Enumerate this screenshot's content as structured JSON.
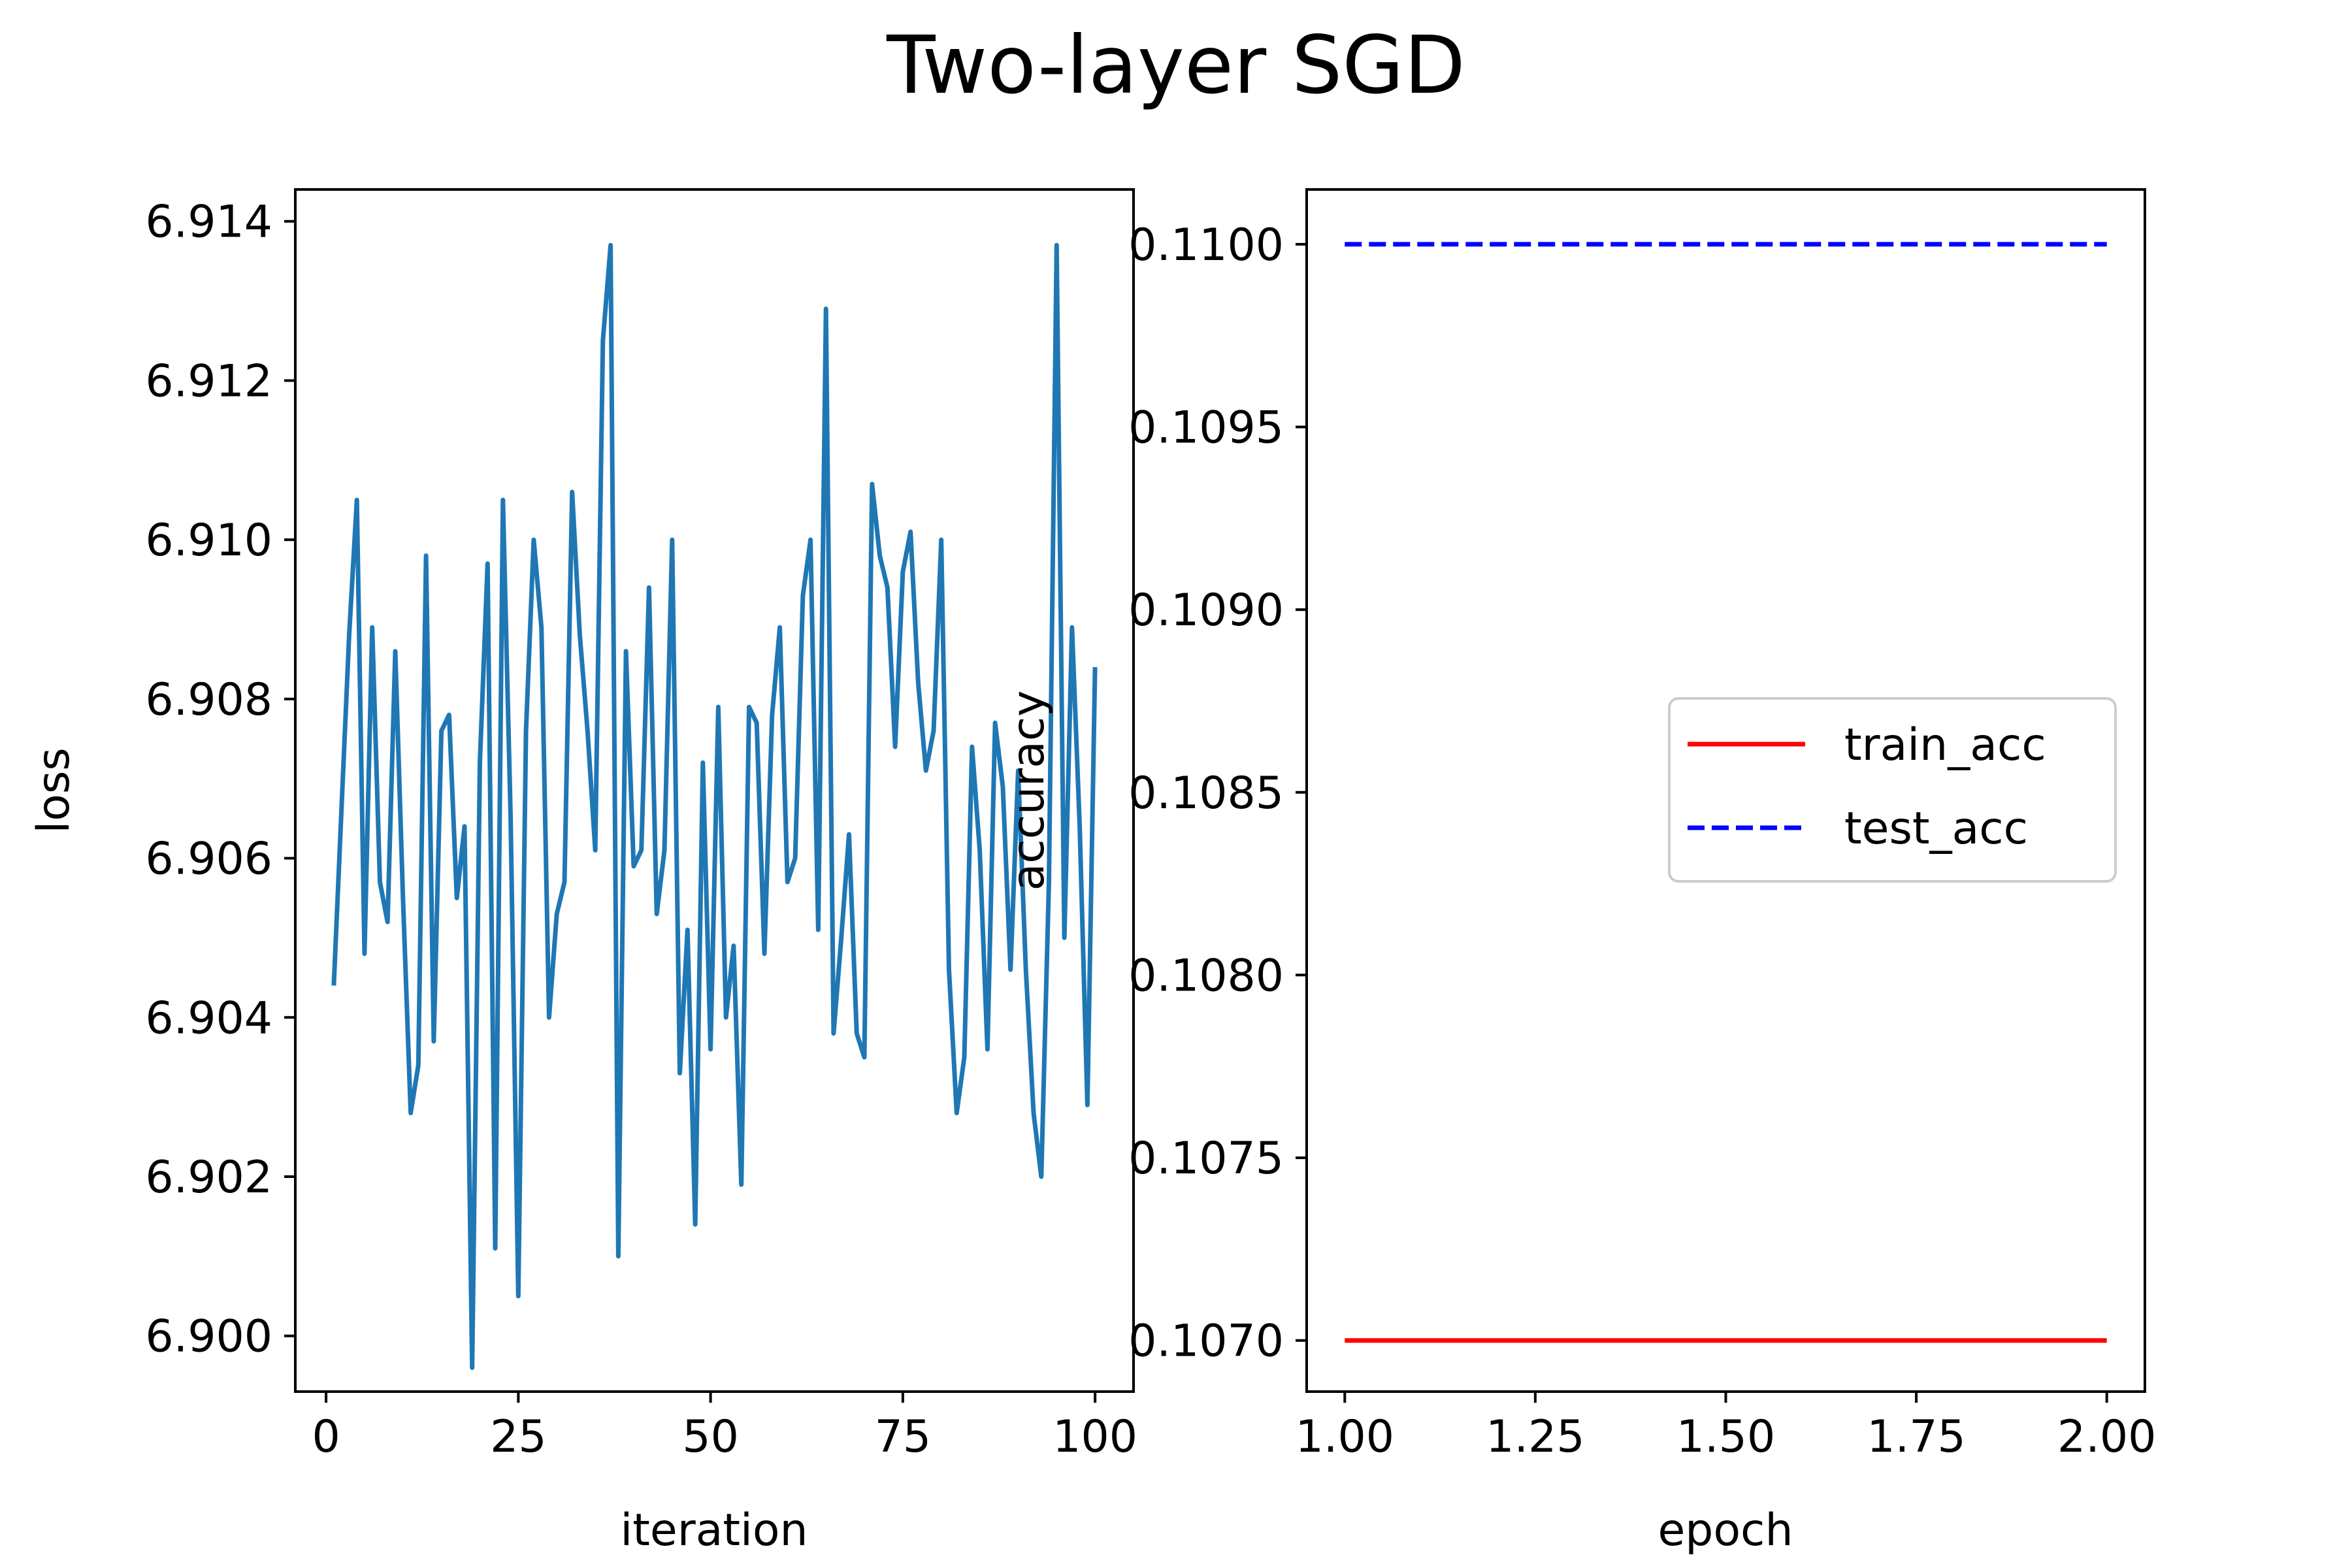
{
  "chart_data": {
    "title": "Two-layer SGD",
    "panels": [
      {
        "type": "line",
        "xlabel": "iteration",
        "ylabel": "loss",
        "xlim": [
          -4,
          105
        ],
        "ylim": [
          6.8993,
          6.9144
        ],
        "xticks": [
          0,
          25,
          50,
          75,
          100
        ],
        "xtick_labels": [
          "0",
          "25",
          "50",
          "75",
          "100"
        ],
        "yticks": [
          6.9,
          6.902,
          6.904,
          6.906,
          6.908,
          6.91,
          6.912,
          6.914
        ],
        "ytick_labels": [
          "6.900",
          "6.902",
          "6.904",
          "6.906",
          "6.908",
          "6.910",
          "6.912",
          "6.914"
        ],
        "series": [
          {
            "name": "loss",
            "color": "#1f77b4",
            "x": [
              1,
              2,
              3,
              4,
              5,
              6,
              7,
              8,
              9,
              10,
              11,
              12,
              13,
              14,
              15,
              16,
              17,
              18,
              19,
              20,
              21,
              22,
              23,
              24,
              25,
              26,
              27,
              28,
              29,
              30,
              31,
              32,
              33,
              34,
              35,
              36,
              37,
              38,
              39,
              40,
              41,
              42,
              43,
              44,
              45,
              46,
              47,
              48,
              49,
              50,
              51,
              52,
              53,
              54,
              55,
              56,
              57,
              58,
              59,
              60,
              61,
              62,
              63,
              64,
              65,
              66,
              67,
              68,
              69,
              70,
              71,
              72,
              73,
              74,
              75,
              76,
              77,
              78,
              79,
              80,
              81,
              82,
              83,
              84,
              85,
              86,
              87,
              88,
              89,
              90,
              91,
              92,
              93,
              94,
              95,
              96,
              97,
              98,
              99,
              100
            ],
            "values": [
              6.9044,
              6.9066,
              6.9088,
              6.9105,
              6.9048,
              6.9089,
              6.9057,
              6.9052,
              6.9086,
              6.9055,
              6.9028,
              6.9034,
              6.9098,
              6.9037,
              6.9076,
              6.9078,
              6.9055,
              6.9064,
              6.8996,
              6.9072,
              6.9097,
              6.9011,
              6.9105,
              6.9065,
              6.9005,
              6.9076,
              6.91,
              6.9089,
              6.904,
              6.9053,
              6.9057,
              6.9106,
              6.9088,
              6.9076,
              6.9061,
              6.9125,
              6.9137,
              6.901,
              6.9086,
              6.9059,
              6.9061,
              6.9094,
              6.9053,
              6.9061,
              6.91,
              6.9033,
              6.9051,
              6.9014,
              6.9072,
              6.9036,
              6.9079,
              6.904,
              6.9049,
              6.9019,
              6.9079,
              6.9077,
              6.9048,
              6.9078,
              6.9089,
              6.9057,
              6.906,
              6.9093,
              6.91,
              6.9051,
              6.9129,
              6.9038,
              6.905,
              6.9063,
              6.9038,
              6.9035,
              6.9107,
              6.9098,
              6.9094,
              6.9074,
              6.9096,
              6.9101,
              6.9082,
              6.9071,
              6.9076,
              6.91,
              6.9046,
              6.9028,
              6.9035,
              6.9074,
              6.9061,
              6.9036,
              6.9077,
              6.9069,
              6.9046,
              6.9071,
              6.9046,
              6.9028,
              6.902,
              6.9057,
              6.9137,
              6.905,
              6.9089,
              6.9064,
              6.9029,
              6.9084
            ]
          }
        ]
      },
      {
        "type": "line",
        "xlabel": "epoch",
        "ylabel": "accuracy",
        "xlim": [
          0.95,
          2.05
        ],
        "ylim": [
          0.10686,
          0.11015
        ],
        "xticks": [
          1.0,
          1.25,
          1.5,
          1.75,
          2.0
        ],
        "xtick_labels": [
          "1.00",
          "1.25",
          "1.50",
          "1.75",
          "2.00"
        ],
        "yticks": [
          0.107,
          0.1075,
          0.108,
          0.1085,
          0.109,
          0.1095,
          0.11
        ],
        "ytick_labels": [
          "0.1070",
          "0.1075",
          "0.1080",
          "0.1085",
          "0.1090",
          "0.1095",
          "0.1100"
        ],
        "legend_position": "center-right",
        "series": [
          {
            "name": "train_acc",
            "color": "#ff0000",
            "style": "solid",
            "x": [
              1,
              2
            ],
            "values": [
              0.107,
              0.107
            ]
          },
          {
            "name": "test_acc",
            "color": "#0000ff",
            "style": "dashed",
            "x": [
              1,
              2
            ],
            "values": [
              0.11,
              0.11
            ]
          }
        ]
      }
    ]
  }
}
